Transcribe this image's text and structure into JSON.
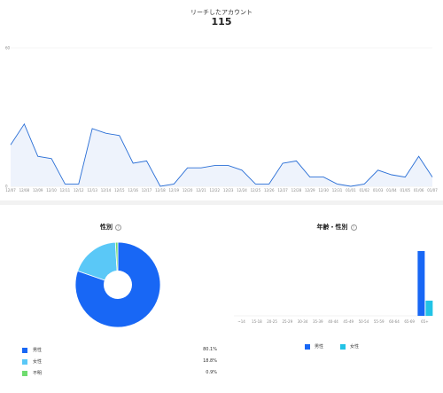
{
  "reach": {
    "title": "リーチしたアカウント",
    "total": "115",
    "line_color": "#2a6fd6",
    "fill_color": "#eef3fc"
  },
  "gender": {
    "title": "性別",
    "info_icon": "info-icon",
    "items": [
      {
        "label": "男性",
        "value": "80.1%",
        "pct": 80.1,
        "color": "#1867f5"
      },
      {
        "label": "女性",
        "value": "18.8%",
        "pct": 18.8,
        "color": "#5ac8f7"
      },
      {
        "label": "不明",
        "value": "0.9%",
        "pct": 0.9,
        "color": "#6fdc6f"
      }
    ]
  },
  "age_gender": {
    "title": "年齢・性別",
    "info_icon": "info-icon",
    "legend": [
      {
        "label": "男性",
        "color": "#1867f5"
      },
      {
        "label": "女性",
        "color": "#22c3e6"
      }
    ]
  },
  "chart_data": [
    {
      "type": "area",
      "title": "リーチしたアカウント",
      "ylim": [
        0,
        60
      ],
      "ytick_labels": [
        "60",
        "0"
      ],
      "x": [
        "12/07",
        "12/08",
        "12/09",
        "12/10",
        "12/11",
        "12/12",
        "12/13",
        "12/14",
        "12/15",
        "12/16",
        "12/17",
        "12/18",
        "12/19",
        "12/20",
        "12/21",
        "12/22",
        "12/23",
        "12/24",
        "12/25",
        "12/26",
        "12/27",
        "12/28",
        "12/29",
        "12/30",
        "12/31",
        "01/01",
        "01/02",
        "01/03",
        "01/04",
        "01/05",
        "01/06",
        "01/07"
      ],
      "y": [
        18,
        27,
        13,
        12,
        1,
        1,
        25,
        23,
        22,
        10,
        11,
        0,
        1,
        8,
        8,
        9,
        9,
        7,
        1,
        1,
        10,
        11,
        4,
        4,
        1,
        0,
        1,
        7,
        5,
        4,
        13,
        4
      ]
    },
    {
      "type": "pie",
      "title": "性別",
      "labels": [
        "男性",
        "女性",
        "不明"
      ],
      "values": [
        80.1,
        18.8,
        0.9
      ]
    },
    {
      "type": "bar",
      "title": "年齢・性別",
      "categories": [
        "~14",
        "15-18",
        "20-25",
        "25-29",
        "30-34",
        "35-39",
        "40-44",
        "45-49",
        "50-54",
        "55-59",
        "60-64",
        "65-69",
        "65+"
      ],
      "series": [
        {
          "name": "男性",
          "values": [
            0,
            0,
            0,
            0,
            0,
            0,
            0,
            0,
            0,
            0,
            0,
            0,
            80.1
          ]
        },
        {
          "name": "女性",
          "values": [
            0,
            0,
            0,
            0,
            0,
            0,
            0,
            0,
            0,
            0,
            0,
            0,
            18.8
          ]
        }
      ]
    }
  ]
}
